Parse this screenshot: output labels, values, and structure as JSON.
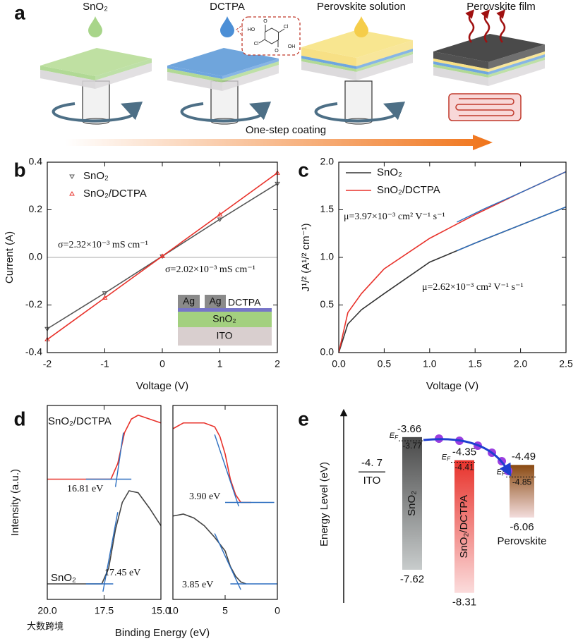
{
  "panel_labels": [
    "a",
    "b",
    "c",
    "d",
    "e"
  ],
  "schematic": {
    "steps": [
      "SnO₂",
      "DCTPA",
      "Perovskite solution",
      "Perovskite film"
    ],
    "molecule_labels": [
      "O",
      "HO",
      "Cl",
      "Cl",
      "OH",
      "O"
    ],
    "process": "One-step coating"
  },
  "chart_data": [
    {
      "type": "line",
      "xlabel": "Voltage (V)",
      "ylabel": "Current (A)",
      "x": [
        -2,
        -1,
        0,
        1,
        2
      ],
      "xlim": [
        -2,
        2
      ],
      "xticks": [
        -2,
        -1,
        0,
        1,
        2
      ],
      "ylim": [
        -0.4,
        0.4
      ],
      "yticks": [
        -0.4,
        -0.2,
        {
          "value": 0,
          "label": "0.0"
        },
        0.2,
        0.4
      ],
      "zero_line": true,
      "markers": true,
      "legend": "upper left",
      "series": [
        {
          "name": "SnO₂",
          "color": "#555555",
          "values": [
            -0.3,
            -0.15,
            0.005,
            0.16,
            0.31
          ]
        },
        {
          "name": "SnO₂/DCTPA",
          "color": "#e8322b",
          "values": [
            -0.345,
            -0.17,
            0.005,
            0.18,
            0.355
          ]
        }
      ],
      "annotations": [
        {
          "text": "σ=2.32×10⁻³ mS cm⁻¹",
          "color": "#e8322b"
        },
        {
          "text": "σ=2.02×10⁻³ mS cm⁻¹",
          "color": "#555555"
        }
      ],
      "inset": {
        "electrodes": [
          "Ag",
          "Ag"
        ],
        "layers": [
          "DCTPA",
          "SnO₂",
          "ITO"
        ]
      }
    },
    {
      "type": "line",
      "xlabel": "Voltage (V)",
      "ylabel": "J¹/² (A¹/² cm⁻¹)",
      "x": [
        0,
        0.1,
        0.25,
        0.5,
        1,
        1.5,
        2,
        2.5
      ],
      "xlim": [
        0,
        2.5
      ],
      "xticks": [
        {
          "value": 0,
          "label": "0.0"
        },
        0.5,
        {
          "value": 1,
          "label": "1.0"
        },
        1.5,
        {
          "value": 2,
          "label": "2.0"
        },
        2.5
      ],
      "ylim": [
        0,
        2
      ],
      "yticks": [
        {
          "value": 0,
          "label": "0.0"
        },
        0.5,
        {
          "value": 1,
          "label": "1.0"
        },
        1.5,
        {
          "value": 2,
          "label": "2.0"
        }
      ],
      "legend": "upper left",
      "series": [
        {
          "name": "SnO₂",
          "color": "#333333",
          "values": [
            0,
            0.3,
            0.45,
            0.62,
            0.95,
            1.15,
            1.34,
            1.53
          ]
        },
        {
          "name": "SnO₂/DCTPA",
          "color": "#e8322b",
          "values": [
            0,
            0.42,
            0.62,
            0.88,
            1.2,
            1.45,
            1.68,
            1.9
          ]
        },
        {
          "color": "#2d6fc0",
          "x": [
            1.3,
            1.6,
            2,
            2.5
          ],
          "values": [
            1.37,
            1.51,
            1.68,
            1.9
          ]
        },
        {
          "color": "#2d6fc0",
          "x": [
            1.3,
            1.6,
            2,
            2.5
          ],
          "values": [
            1.07,
            1.19,
            1.34,
            1.53
          ]
        }
      ],
      "annotations": [
        {
          "text": "μ=3.97×10⁻³ cm² V⁻¹ s⁻¹",
          "color": "#e8322b"
        },
        {
          "text": "μ=2.62×10⁻³ cm² V⁻¹ s⁻¹",
          "color": "#555555"
        }
      ]
    },
    {
      "type": "line",
      "xlabel": "Binding Energy (eV)",
      "ylabel": "Intensity (a.u.)",
      "xlim": [
        20,
        15
      ],
      "xticks": [
        {
          "value": 20,
          "label": "20.0"
        },
        17.5,
        {
          "value": 15,
          "label": "15.0"
        }
      ],
      "ylim": [
        0,
        1
      ],
      "legend": "inline",
      "series": [
        {
          "name": "SnO₂/DCTPA",
          "color": "#e8322b",
          "x": [
            20,
            19,
            18,
            17.2,
            16.9,
            16.6,
            16.3,
            16,
            15.5,
            15
          ],
          "values": [
            0.62,
            0.62,
            0.62,
            0.62,
            0.7,
            0.86,
            0.93,
            0.95,
            0.93,
            0.91
          ]
        },
        {
          "name": "SnO₂",
          "color": "#444444",
          "x": [
            20,
            19,
            18,
            17.6,
            17.3,
            17,
            16.7,
            16.4,
            16,
            15.5,
            15
          ],
          "values": [
            0.08,
            0.08,
            0.08,
            0.08,
            0.16,
            0.36,
            0.5,
            0.56,
            0.55,
            0.47,
            0.38
          ]
        },
        {
          "color": "#2d6fc0",
          "x": [
            18.3,
            16.3
          ],
          "values": [
            0.62,
            0.62
          ]
        },
        {
          "color": "#2d6fc0",
          "x": [
            17,
            16.65
          ],
          "values": [
            0.58,
            0.86
          ]
        },
        {
          "color": "#2d6fc0",
          "x": [
            18.3,
            17.1
          ],
          "values": [
            0.08,
            0.08
          ]
        },
        {
          "color": "#2d6fc0",
          "x": [
            17.55,
            16.9
          ],
          "values": [
            0.04,
            0.45
          ]
        }
      ],
      "annotations": [
        {
          "text": "16.81 eV",
          "color": "#e8322b"
        },
        {
          "text": "17.45 eV",
          "color": "#444444"
        }
      ]
    },
    {
      "type": "line",
      "xlim": [
        10,
        0
      ],
      "xticks": [
        10,
        5,
        0
      ],
      "ylim": [
        0,
        1
      ],
      "series": [
        {
          "color": "#e8322b",
          "x": [
            10,
            9,
            8,
            7,
            6,
            5.5,
            5,
            4.5,
            4,
            3.5,
            3,
            2.5
          ],
          "values": [
            0.88,
            0.91,
            0.91,
            0.91,
            0.89,
            0.84,
            0.75,
            0.62,
            0.54,
            0.5,
            0.5,
            0.5
          ]
        },
        {
          "color": "#444444",
          "x": [
            10,
            9,
            8,
            7,
            6,
            5,
            4.5,
            4,
            3.5,
            3
          ],
          "values": [
            0.43,
            0.44,
            0.42,
            0.38,
            0.32,
            0.25,
            0.17,
            0.12,
            0.09,
            0.08
          ]
        },
        {
          "color": "#2d6fc0",
          "x": [
            5,
            0.3
          ],
          "values": [
            0.5,
            0.5
          ]
        },
        {
          "color": "#2d6fc0",
          "x": [
            6,
            3.7
          ],
          "values": [
            0.85,
            0.48
          ]
        },
        {
          "color": "#2d6fc0",
          "x": [
            4.5,
            0
          ],
          "values": [
            0.08,
            0.08
          ]
        },
        {
          "color": "#2d6fc0",
          "x": [
            6,
            3.5
          ],
          "values": [
            0.34,
            0.05
          ]
        }
      ],
      "annotations": [
        {
          "text": "3.90 eV",
          "color": "#e8322b"
        },
        {
          "text": "3.85 eV",
          "color": "#444444"
        }
      ]
    }
  ],
  "energy_diagram": {
    "ylabel": "Energy Level (eV)",
    "fermi_symbol": [
      "E",
      "F"
    ],
    "ito": {
      "value": -4.7,
      "label": "-4. 7",
      "name": "ITO"
    },
    "layers": [
      {
        "name": "SnO₂",
        "top": -3.66,
        "bottom": -7.62,
        "fermi": -3.77,
        "colors": [
          "#4a4a4a",
          "#c8cccc"
        ]
      },
      {
        "name": "SnO₂/DCTPA",
        "top": -4.35,
        "bottom": -8.31,
        "fermi": -4.41,
        "colors": [
          "#e8322b",
          "#fbdcdc"
        ]
      },
      {
        "name": "Perovskite",
        "top": -4.49,
        "bottom": -6.06,
        "fermi": -4.85,
        "colors": [
          "#8a4a12",
          "#f3dcdc"
        ]
      }
    ]
  },
  "watermark": "大数跨境"
}
